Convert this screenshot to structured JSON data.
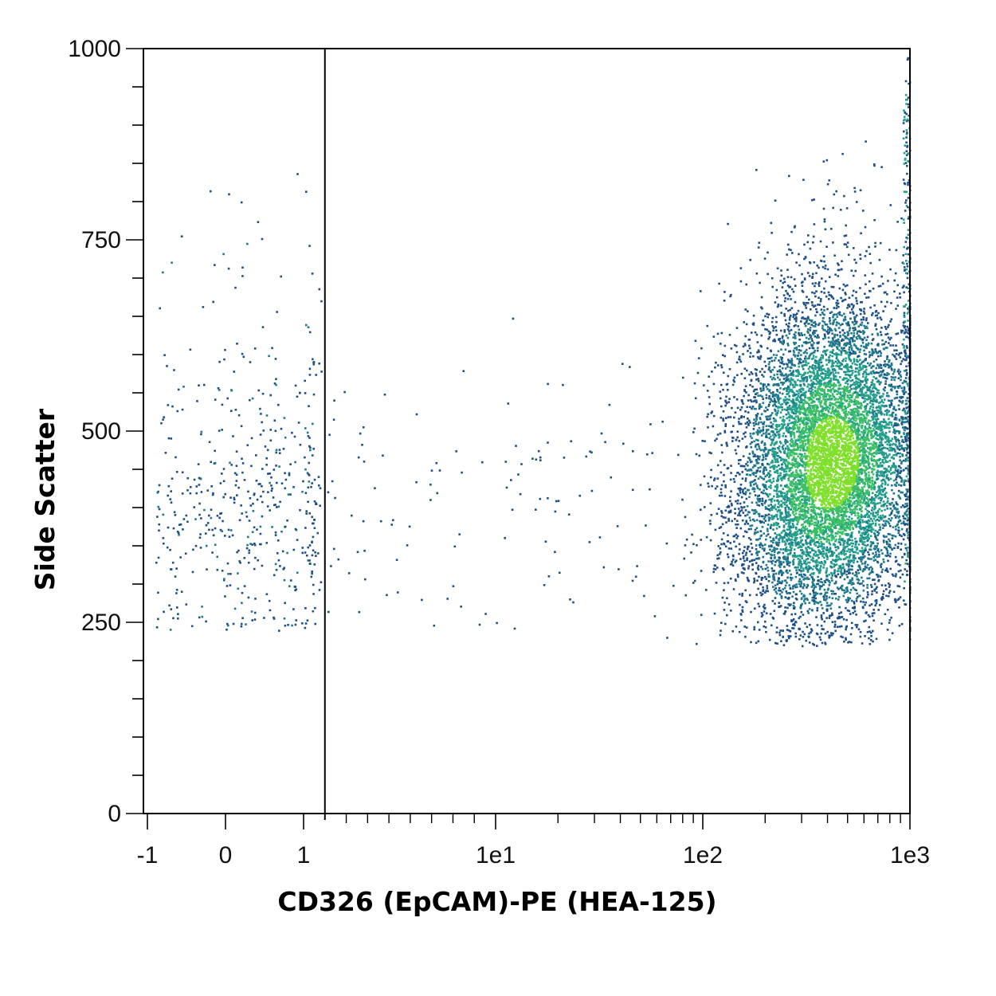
{
  "chart_data": {
    "type": "scatter",
    "subtype": "flow-cytometry density dot plot",
    "xlabel": "CD326 (EpCAM)-PE (HEA-125)",
    "ylabel": "Side Scatter",
    "x_scale": "biexponential (linear near zero, log above 10)",
    "xlim": [
      -1,
      1000
    ],
    "ylim": [
      0,
      1000
    ],
    "x_ticks": [
      {
        "value": -1,
        "label": "-1"
      },
      {
        "value": 0,
        "label": "0"
      },
      {
        "value": 1,
        "label": "1"
      },
      {
        "value": 10,
        "label": "1e1"
      },
      {
        "value": 100,
        "label": "1e2"
      },
      {
        "value": 1000,
        "label": "1e3"
      }
    ],
    "y_ticks": [
      {
        "value": 0,
        "label": "0"
      },
      {
        "value": 250,
        "label": "250"
      },
      {
        "value": 500,
        "label": "500"
      },
      {
        "value": 750,
        "label": "750"
      },
      {
        "value": 1000,
        "label": "1000"
      }
    ],
    "gate_x": 2,
    "grid": false,
    "legend": "none",
    "colormap": [
      "#1e4f86",
      "#1f7a8c",
      "#22a08a",
      "#3cc063",
      "#7fdf2a"
    ],
    "populations": [
      {
        "name": "negative",
        "x_center": 0.3,
        "x_spread": 0.75,
        "y_center": 400,
        "y_spread": 95,
        "y_min": 240,
        "y_max": 840,
        "relative_density": "low"
      },
      {
        "name": "sparse-intermediate",
        "x_range": [
          2,
          60
        ],
        "y_center": 420,
        "y_spread": 90,
        "relative_density": "very low"
      },
      {
        "name": "positive",
        "x_center": 420,
        "x_spread_log10": 0.23,
        "y_center": 460,
        "y_spread": 110,
        "y_min": 220,
        "y_max": 1000,
        "relative_density": "high"
      }
    ]
  }
}
